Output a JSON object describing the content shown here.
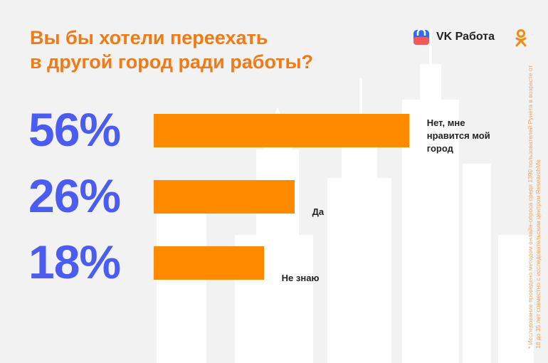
{
  "title_lines": [
    "Вы бы хотели переехать",
    "в другой город ради работы?"
  ],
  "brand": {
    "vk_label": "VK Работа"
  },
  "colors": {
    "bar": "#ff8a00",
    "percent": "#4a5cf2",
    "title": "#f07a14"
  },
  "chart_data": {
    "type": "bar",
    "orientation": "horizontal",
    "title": "Вы бы хотели переехать в другой город ради работы?",
    "categories": [
      "Нет, мне нравится мой город",
      "Да",
      "Не знаю"
    ],
    "values": [
      56,
      26,
      18
    ],
    "value_labels": [
      "56%",
      "26%",
      "18%"
    ],
    "unit": "%"
  },
  "footnote": "* Исследование проведено методом онлайн-опроса среди 1390 пользователей Рунета в возрасте от 18 до 35 лет совместно с исследовательским центром ResearchMe"
}
